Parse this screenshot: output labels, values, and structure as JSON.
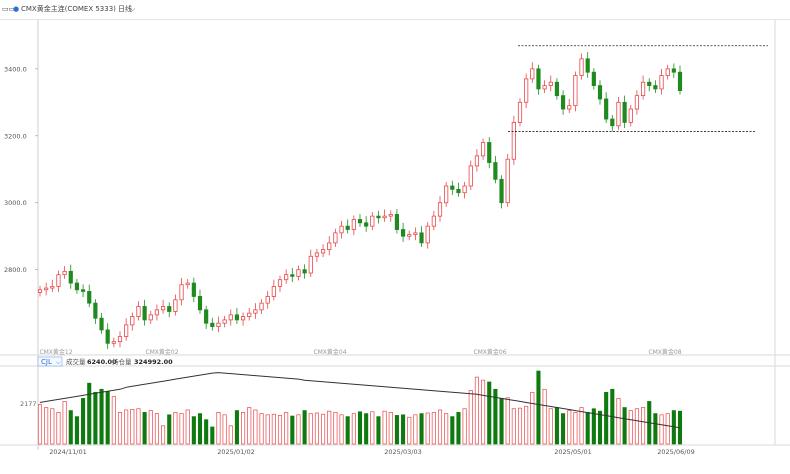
{
  "toolbar": {
    "icon_left": "layout-icon",
    "marker_icon": "dot-icon",
    "symbol_title": "CMX黄金主连(COMEX 5333)",
    "period": "日线",
    "dropdown_icon": "chevron-down-icon"
  },
  "volume_panel": {
    "indicator_label": "CJL",
    "volume_label": "成交量",
    "volume_value": "6240.00",
    "oi_label": "持仓量",
    "oi_value": "324992.00",
    "axis_label": "2177"
  },
  "colors": {
    "up": "#e8474a",
    "down": "#1f8a1f",
    "volume_down": "#0f7a0f",
    "line": "#333333",
    "dashed": "#222222"
  },
  "chart_data": {
    "type": "candlestick",
    "y_ticks": [
      {
        "label": "3400.0",
        "value": 3400
      },
      {
        "label": "3200.0",
        "value": 3200
      },
      {
        "label": "3000.0",
        "value": 3000
      },
      {
        "label": "2800.0",
        "value": 2800
      }
    ],
    "ylim": [
      2560,
      3540
    ],
    "x_tick_labels": [
      "2024/11/01",
      "2025/01/02",
      "2025/03/03",
      "2025/05/01",
      "2025/06/09"
    ],
    "contract_labels": [
      "CMX黄金12",
      "CMX黄金02",
      "CMX黄金04",
      "CMX黄金06",
      "CMX黄金08"
    ],
    "resistance": 3469,
    "support": 3213,
    "price_series": [
      2740,
      2745,
      2750,
      2785,
      2795,
      2760,
      2740,
      2735,
      2700,
      2655,
      2620,
      2580,
      2585,
      2600,
      2635,
      2660,
      2690,
      2650,
      2665,
      2680,
      2690,
      2675,
      2710,
      2755,
      2760,
      2720,
      2680,
      2640,
      2630,
      2640,
      2650,
      2665,
      2650,
      2660,
      2670,
      2680,
      2700,
      2720,
      2750,
      2770,
      2785,
      2780,
      2800,
      2790,
      2840,
      2850,
      2860,
      2880,
      2910,
      2930,
      2920,
      2950,
      2940,
      2930,
      2960,
      2955,
      2960,
      2965,
      2920,
      2900,
      2905,
      2910,
      2880,
      2930,
      2960,
      3000,
      3050,
      3040,
      3030,
      3050,
      3110,
      3140,
      3180,
      3120,
      3070,
      3000,
      3130,
      3240,
      3300,
      3370,
      3400,
      3340,
      3350,
      3360,
      3320,
      3280,
      3290,
      3380,
      3430,
      3390,
      3350,
      3310,
      3250,
      3230,
      3300,
      3240,
      3280,
      3320,
      3360,
      3350,
      3340,
      3380,
      3400,
      3390,
      3335
    ],
    "volume_bars": [
      65,
      60,
      58,
      52,
      70,
      55,
      45,
      75,
      100,
      85,
      90,
      86,
      78,
      52,
      56,
      57,
      58,
      52,
      55,
      50,
      30,
      48,
      52,
      50,
      56,
      45,
      50,
      40,
      28,
      52,
      48,
      30,
      55,
      52,
      60,
      56,
      50,
      48,
      49,
      47,
      52,
      46,
      48,
      55,
      50,
      51,
      49,
      54,
      52,
      48,
      45,
      50,
      53,
      50,
      53,
      45,
      54,
      52,
      47,
      48,
      44,
      48,
      50,
      51,
      52,
      56,
      50,
      45,
      52,
      58,
      88,
      110,
      105,
      102,
      90,
      75,
      76,
      58,
      59,
      62,
      85,
      120,
      90,
      58,
      60,
      50,
      55,
      52,
      60,
      52,
      58,
      54,
      85,
      90,
      75,
      60,
      55,
      58,
      60,
      70,
      50,
      48,
      50,
      55,
      54
    ],
    "oi_line": [
      82,
      84,
      86,
      88,
      90,
      92,
      94,
      96,
      98,
      100,
      102,
      104,
      106,
      108,
      112,
      114,
      116,
      118,
      120,
      122,
      124,
      126,
      128,
      130,
      132,
      134,
      136,
      138,
      140,
      141,
      140,
      139,
      138,
      137,
      136,
      135,
      134,
      133,
      132,
      131,
      130,
      129,
      128,
      126,
      125,
      124,
      123,
      122,
      121,
      120,
      119,
      118,
      117,
      116,
      115,
      114,
      113,
      112,
      111,
      110,
      109,
      108,
      107,
      106,
      105,
      104,
      103,
      102,
      101,
      100,
      99,
      98,
      96,
      94,
      92,
      90,
      88,
      86,
      84,
      82,
      80,
      78,
      76,
      74,
      72,
      70,
      68,
      66,
      64,
      62,
      60,
      58,
      56,
      54,
      52,
      50,
      48,
      46,
      44,
      42,
      40,
      38,
      36,
      34,
      32
    ]
  }
}
